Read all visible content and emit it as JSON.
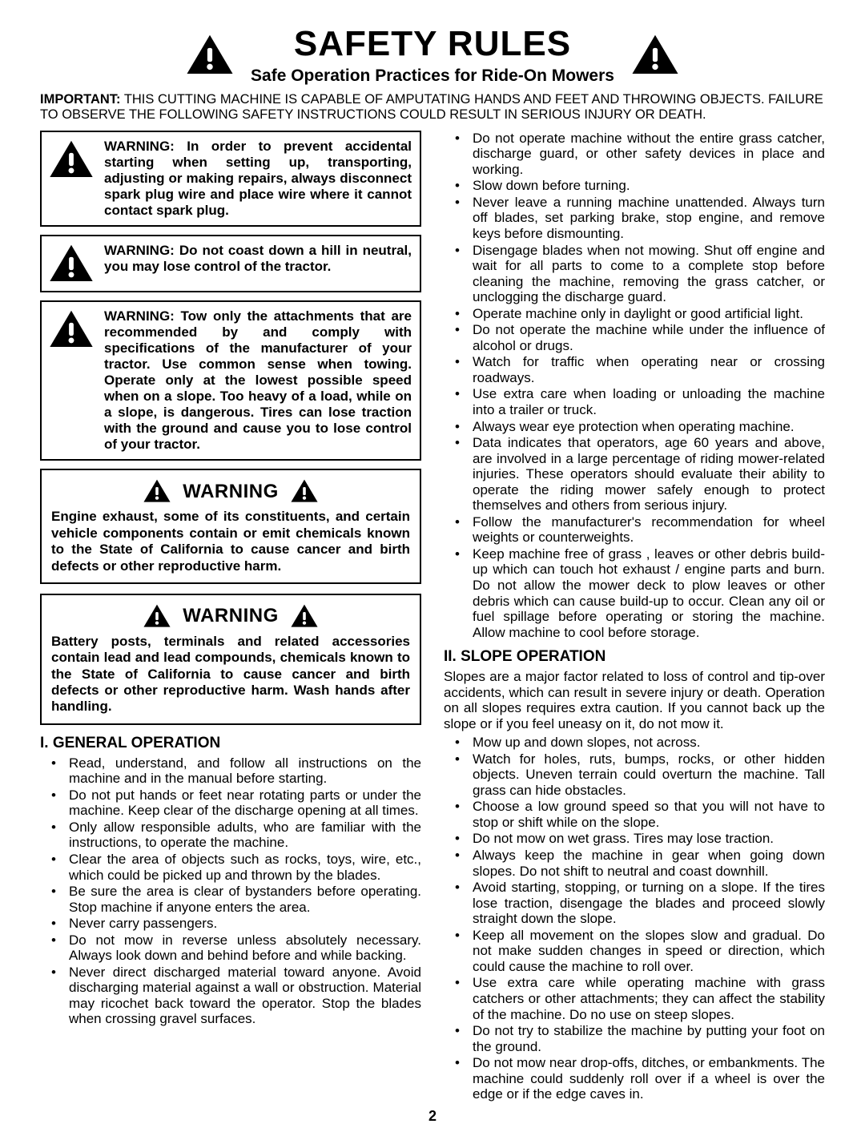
{
  "header": {
    "title": "SAFETY RULES",
    "subtitle": "Safe Operation Practices for Ride-On Mowers"
  },
  "important": {
    "label": "IMPORTANT:",
    "text": "THIS CUTTING MACHINE IS CAPABLE OF AMPUTATING HANDS AND FEET AND THROWING OBJECTS.  FAILURE TO OBSERVE THE FOLLOWING SAFETY INSTRUCTIONS COULD RESULT IN SERIOUS INJURY OR DEATH."
  },
  "warn_boxes": [
    {
      "head": "WARNING:",
      "body": "In order to prevent accidental starting when setting up, transporting, adjusting or making repairs, always disconnect spark plug wire and place wire where it cannot contact spark plug."
    },
    {
      "head": "WARNING:",
      "body": "Do not coast down a hill in neutral, you may lose control of the tractor."
    },
    {
      "head": "WARNING:",
      "body": "Tow only the attachments that are recommended by and comply with specifications of the manufacturer of your tractor. Use common sense when towing. Operate only at the lowest possible speed when on a slope. Too heavy of a load, while on a slope, is dangerous.  Tires can lose traction with the ground and cause you to lose control of your tractor."
    }
  ],
  "ca_boxes": [
    {
      "title": "WARNING",
      "text": "Engine exhaust, some of its constituents, and certain vehicle components contain or emit chemicals known to the State of California to cause cancer and birth defects or other reproductive harm."
    },
    {
      "title": "WARNING",
      "text": "Battery posts, terminals and related accessories contain lead and lead compounds, chemicals known to the State of California to cause cancer and birth defects or other reproductive harm. Wash hands after handling."
    }
  ],
  "sections": {
    "general": {
      "title": "I. GENERAL OPERATION",
      "items_left": [
        "Read, understand, and follow all instructions on the machine and in the manual before starting.",
        "Do not put hands or feet near rotating parts or under the machine. Keep clear of the discharge opening at all times.",
        "Only allow responsible adults, who are familiar with the instructions, to operate the machine.",
        "Clear the area of objects such as rocks, toys, wire, etc., which could be picked up and thrown by the blades.",
        "Be sure the area is clear of bystanders before operating.  Stop machine if anyone enters the area.",
        "Never carry passengers.",
        "Do not mow in reverse unless absolutely necessary. Always look down and behind before and while backing.",
        "Never direct discharged material toward anyone. Avoid discharging material against a wall or obstruction. Material may ricochet back toward the operator. Stop the blades when crossing gravel surfaces."
      ],
      "items_right": [
        "Do not operate machine without the entire grass catcher, discharge guard, or other safety devices in place and working.",
        "Slow down before turning.",
        "Never leave a running machine unattended.  Always turn off blades, set parking brake, stop engine, and remove keys before dismounting.",
        "Disengage blades when not mowing. Shut off engine and wait for all parts to come to a complete stop before cleaning the machine, removing the grass catcher, or unclogging the discharge guard.",
        "Operate machine only in daylight or good artificial light.",
        "Do not operate the machine while under the influence of alcohol or drugs.",
        "Watch for traffic when operating near or crossing roadways.",
        "Use extra care when loading or unloading the machine into a trailer or truck.",
        "Always wear eye protection when operating machine.",
        "Data indicates that operators, age 60 years and above, are involved in a large percentage of riding mower-related injuries.  These operators should evaluate their ability to operate the riding mower safely enough to protect themselves and others from serious injury.",
        "Follow the manufacturer's recommendation for wheel weights or counterweights.",
        "Keep machine free of grass , leaves or other debris build-up which can touch hot exhaust / engine parts and burn. Do not allow the mower deck to plow leaves or other debris which can cause build-up to occur. Clean any oil or fuel spillage before operating or storing the machine. Allow machine to cool before storage."
      ]
    },
    "slope": {
      "title": "II. SLOPE OPERATION",
      "intro": "Slopes are a major factor related to loss of control and tip-over accidents, which can result in severe injury or death.  Operation on all slopes requires extra caution.  If you cannot back up the slope or if you feel uneasy on it, do not mow it.",
      "items": [
        "Mow up and down slopes, not across.",
        "Watch for holes, ruts, bumps, rocks, or other hidden objects.  Uneven terrain could overturn the machine. Tall grass can hide obstacles.",
        "Choose a low ground speed so that you will not have to stop or shift while on the slope.",
        "Do not mow on wet grass. Tires may lose traction.",
        "Always keep the machine in gear when going down slopes. Do not shift to neutral and coast downhill.",
        "Avoid starting, stopping, or turning on a slope.  If the tires lose traction,  disengage the blades and proceed slowly straight down the slope.",
        "Keep all movement on the slopes slow and gradual. Do not make sudden changes in speed or direction, which could cause the machine to roll over.",
        "Use extra care while operating machine with grass catchers or other attachments; they can affect the stability of the machine. Do no use on steep slopes.",
        "Do not  try to stabilize the machine by putting your foot on the ground.",
        "Do not mow near drop-offs, ditches, or embankments. The machine could suddenly roll over if a wheel is over the edge or if the edge caves in."
      ]
    }
  },
  "page_number": "2"
}
